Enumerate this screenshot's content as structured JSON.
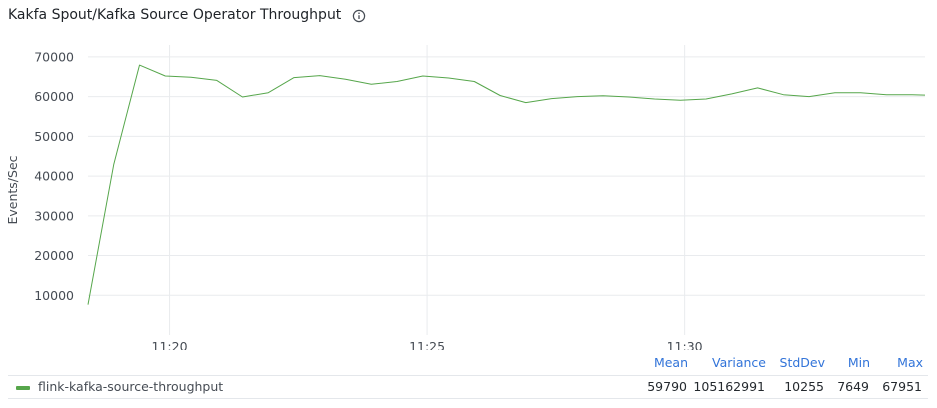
{
  "panel": {
    "title": "Kakfa Spout/Kafka Source Operator Throughput",
    "info_icon": "info-circle-icon"
  },
  "chart_data": {
    "type": "line",
    "title": "Kakfa Spout/Kafka Source Operator Throughput",
    "ylabel": "Events/Sec",
    "xlabel": "",
    "ylim": [
      0,
      73000
    ],
    "xlim": [
      "11:18:25",
      "11:34:40"
    ],
    "y_ticks": [
      10000,
      20000,
      30000,
      40000,
      50000,
      60000,
      70000
    ],
    "x_ticks": [
      "11:20",
      "11:25",
      "11:30"
    ],
    "grid": true,
    "legend_placement": "bottom",
    "series": [
      {
        "name": "flink-kafka-source-throughput",
        "color": "#56a64b",
        "x": [
          "11:18:25",
          "11:18:55",
          "11:19:25",
          "11:19:55",
          "11:20:25",
          "11:20:55",
          "11:21:25",
          "11:21:55",
          "11:22:25",
          "11:22:55",
          "11:23:25",
          "11:23:55",
          "11:24:25",
          "11:24:55",
          "11:25:25",
          "11:25:55",
          "11:26:25",
          "11:26:55",
          "11:27:25",
          "11:27:55",
          "11:28:25",
          "11:28:55",
          "11:29:25",
          "11:29:55",
          "11:30:25",
          "11:30:55",
          "11:31:25",
          "11:31:55",
          "11:32:25",
          "11:32:55",
          "11:33:25",
          "11:33:55",
          "11:34:25",
          "11:34:40"
        ],
        "values": [
          7649,
          43000,
          67951,
          65200,
          64900,
          64100,
          59900,
          61000,
          64800,
          65300,
          64400,
          63100,
          63800,
          65200,
          64700,
          63800,
          60300,
          58500,
          59500,
          60000,
          60200,
          59900,
          59400,
          59100,
          59400,
          60700,
          62200,
          60500,
          60000,
          61000,
          61000,
          60500,
          60500,
          60400
        ]
      }
    ],
    "stats": {
      "headers": [
        "Mean",
        "Variance",
        "StdDev",
        "Min",
        "Max"
      ],
      "values": [
        "59790",
        "105162991",
        "10255",
        "7649",
        "67951"
      ]
    }
  }
}
